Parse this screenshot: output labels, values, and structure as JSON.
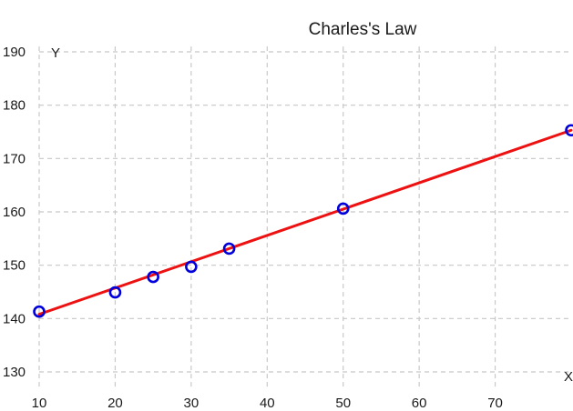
{
  "chart_data": {
    "type": "scatter",
    "title": "Charles's Law",
    "xlabel": "X",
    "ylabel": "Y",
    "xlim": [
      10,
      80
    ],
    "ylim": [
      127,
      191
    ],
    "grid": true,
    "x_ticks": [
      10,
      20,
      30,
      40,
      50,
      60,
      70
    ],
    "y_ticks": [
      130,
      140,
      150,
      160,
      170,
      180,
      190
    ],
    "series": [
      {
        "kind": "points",
        "color": "#0000dd",
        "points": [
          {
            "x": 10,
            "y": 141.3
          },
          {
            "x": 20,
            "y": 144.9
          },
          {
            "x": 25,
            "y": 147.8
          },
          {
            "x": 30,
            "y": 149.7
          },
          {
            "x": 35,
            "y": 153.1
          },
          {
            "x": 50,
            "y": 160.6
          },
          {
            "x": 80,
            "y": 175.3
          }
        ]
      },
      {
        "kind": "fit-line",
        "color": "#ee1111",
        "points": [
          {
            "x": 10,
            "y": 140.8
          },
          {
            "x": 80,
            "y": 175.3
          }
        ]
      }
    ],
    "colors": {
      "grid": "#c8c8c8",
      "text": "#1a1a1a"
    }
  }
}
